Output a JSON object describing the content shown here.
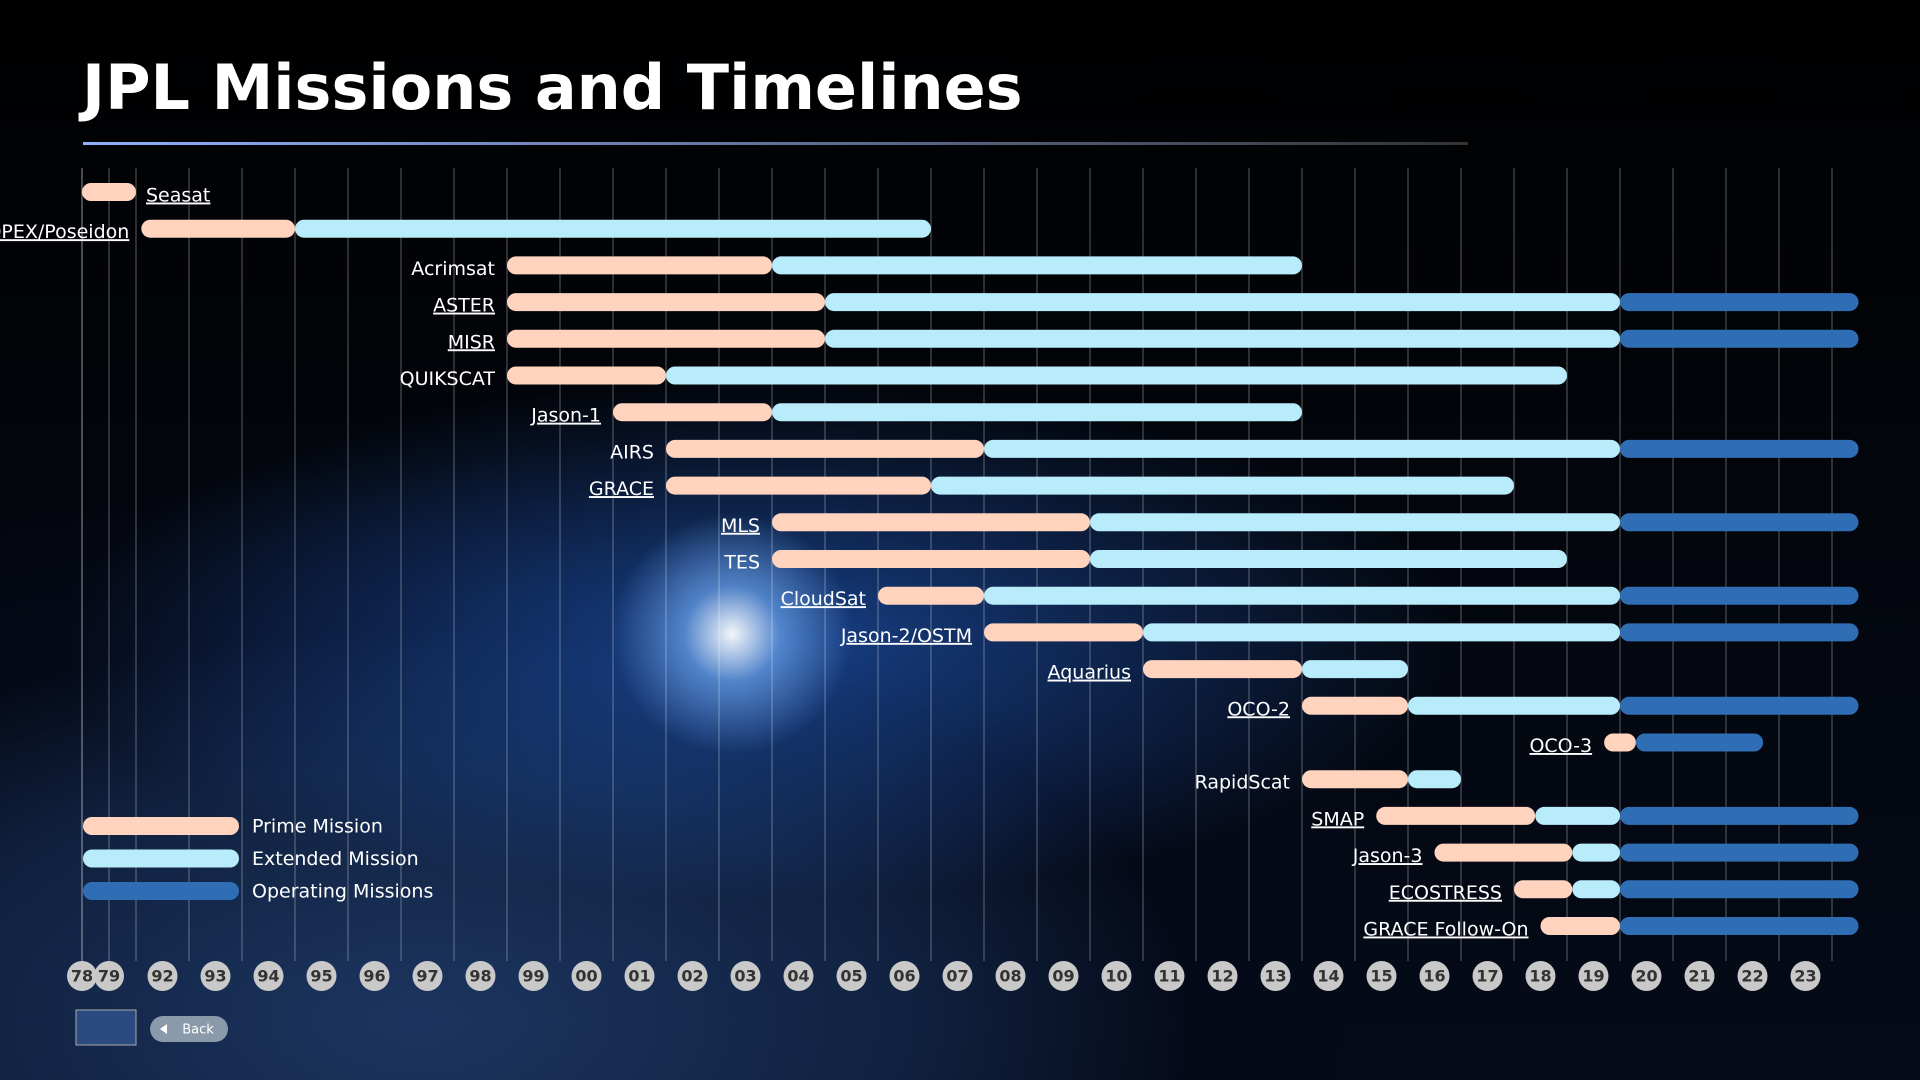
{
  "chart_data": {
    "type": "gantt",
    "title": "JPL Missions and Timelines",
    "categories": [
      "Seasat",
      "TOPEX/Poseidon",
      "Acrimsat",
      "ASTER",
      "MISR",
      "QUIKSCAT",
      "Jason-1",
      "AIRS",
      "GRACE",
      "MLS",
      "TES",
      "CloudSat",
      "Jason-2/OSTM",
      "Aquarius",
      "OCO-2",
      "OCO-3",
      "RapidScat",
      "SMAP",
      "Jason-3",
      "ECOSTRESS",
      "GRACE Follow-On"
    ],
    "linked": [
      true,
      true,
      false,
      true,
      true,
      false,
      true,
      false,
      true,
      true,
      false,
      true,
      true,
      true,
      true,
      true,
      false,
      true,
      true,
      true,
      true
    ],
    "series": [
      {
        "name": "Prime Mission",
        "color": "#ffd3bd",
        "starts": [
          1978,
          1992.1,
          1999,
          1999,
          1999,
          1999,
          2001,
          2002,
          2002,
          2004,
          2004,
          2006,
          2008,
          2011,
          2014,
          2019.7,
          2014,
          2015.4,
          2016.5,
          2018,
          2018.5
        ],
        "ends": [
          1980,
          1995,
          2004,
          2005,
          2005,
          2002,
          2004,
          2008,
          2007,
          2010,
          2010,
          2008,
          2011,
          2014,
          2016,
          2020.3,
          2016,
          2018.4,
          2019.1,
          2019.1,
          2020
        ]
      },
      {
        "name": "Extended Mission",
        "color": "#b8ecfb",
        "starts": [
          null,
          1995,
          2004,
          2005,
          2005,
          2002,
          2004,
          2008,
          2007,
          2010,
          2010,
          2008,
          2011,
          2014,
          2016,
          null,
          2016,
          2018.4,
          2019.1,
          2019.1,
          null
        ],
        "ends": [
          null,
          2007,
          2014,
          2020,
          2020,
          2019,
          2014,
          2020,
          2018,
          2020,
          2019,
          2020,
          2020,
          2016,
          2020,
          null,
          2017,
          2020,
          2020,
          2020,
          null
        ]
      },
      {
        "name": "Operating Missions",
        "color": "#2f6db5",
        "starts": [
          null,
          null,
          null,
          2020,
          2020,
          null,
          null,
          2020,
          null,
          2020,
          null,
          2020,
          2020,
          null,
          2020,
          2020.3,
          null,
          2020,
          2020,
          2020,
          2020
        ],
        "ends": [
          null,
          null,
          null,
          2024.5,
          2024.5,
          null,
          null,
          2024.5,
          null,
          2024.5,
          null,
          2024.5,
          2024.5,
          null,
          2024.5,
          2022.7,
          null,
          2024.5,
          2024.5,
          2024.5,
          2024.5
        ]
      }
    ],
    "xlim": [
      1978,
      2024
    ],
    "xticks": [
      {
        "value": 1978,
        "label": "78"
      },
      {
        "value": 1979,
        "label": "79"
      },
      {
        "value": 1992,
        "label": "92"
      },
      {
        "value": 1993,
        "label": "93"
      },
      {
        "value": 1994,
        "label": "94"
      },
      {
        "value": 1995,
        "label": "95"
      },
      {
        "value": 1996,
        "label": "96"
      },
      {
        "value": 1997,
        "label": "97"
      },
      {
        "value": 1998,
        "label": "98"
      },
      {
        "value": 1999,
        "label": "99"
      },
      {
        "value": 2000,
        "label": "00"
      },
      {
        "value": 2001,
        "label": "01"
      },
      {
        "value": 2002,
        "label": "02"
      },
      {
        "value": 2003,
        "label": "03"
      },
      {
        "value": 2004,
        "label": "04"
      },
      {
        "value": 2005,
        "label": "05"
      },
      {
        "value": 2006,
        "label": "06"
      },
      {
        "value": 2007,
        "label": "07"
      },
      {
        "value": 2008,
        "label": "08"
      },
      {
        "value": 2009,
        "label": "09"
      },
      {
        "value": 2010,
        "label": "10"
      },
      {
        "value": 2011,
        "label": "11"
      },
      {
        "value": 2012,
        "label": "12"
      },
      {
        "value": 2013,
        "label": "13"
      },
      {
        "value": 2014,
        "label": "14"
      },
      {
        "value": 2015,
        "label": "15"
      },
      {
        "value": 2016,
        "label": "16"
      },
      {
        "value": 2017,
        "label": "17"
      },
      {
        "value": 2018,
        "label": "18"
      },
      {
        "value": 2019,
        "label": "19"
      },
      {
        "value": 2020,
        "label": "20"
      },
      {
        "value": 2021,
        "label": "21"
      },
      {
        "value": 2022,
        "label": "22"
      },
      {
        "value": 2023,
        "label": "23"
      }
    ],
    "grid": true,
    "back_button": "Back"
  }
}
